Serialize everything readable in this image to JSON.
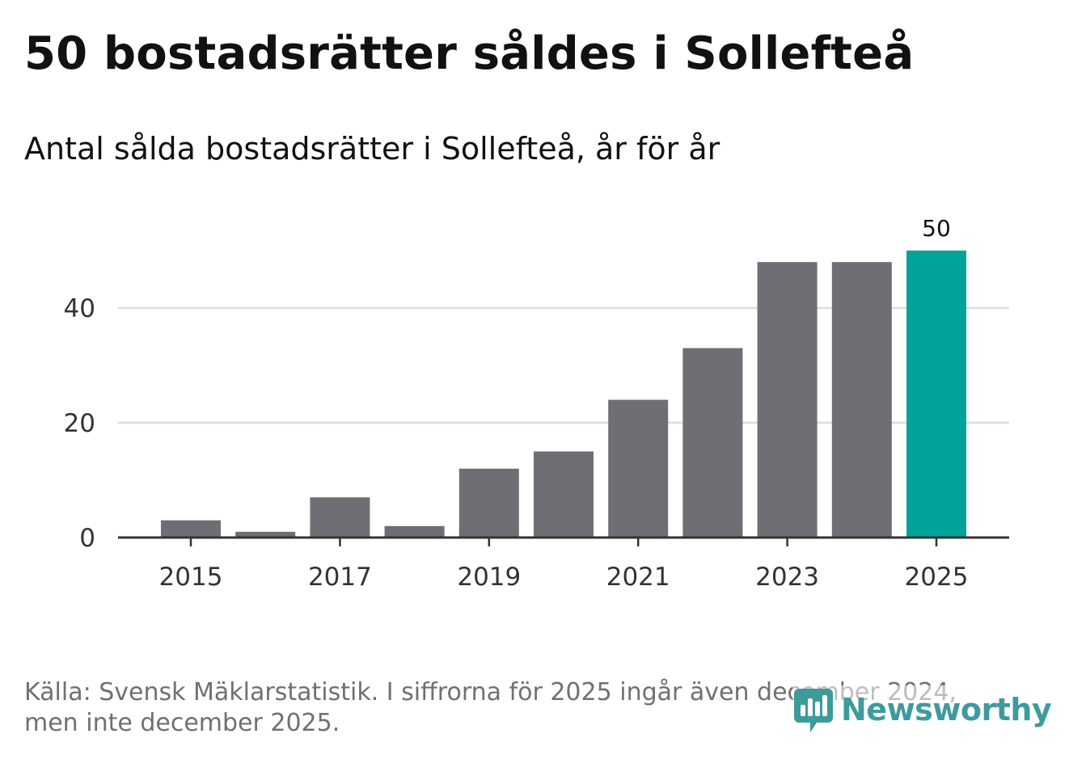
{
  "colors": {
    "bar": "#6e6e75",
    "highlight": "#00a39a",
    "grid": "#dddddd",
    "axis": "#333333",
    "brand": "#3e9b9b"
  },
  "source_text": "Källa: Svensk Mäklarstatistik. I siffrorna för 2025 ingår även december 2024, men inte december 2025.",
  "brand": {
    "name": "Newsworthy",
    "icon": "newsworthy-logo-icon"
  },
  "chart_data": {
    "type": "bar",
    "title": "50 bostadsrätter såldes i Sollefteå",
    "subtitle": "Antal sålda bostadsrätter i Sollefteå, år för år",
    "categories": [
      "2015",
      "2016",
      "2017",
      "2018",
      "2019",
      "2020",
      "2021",
      "2022",
      "2023",
      "2024",
      "2025"
    ],
    "values": [
      3,
      1,
      7,
      2,
      12,
      15,
      24,
      33,
      48,
      48,
      50
    ],
    "highlight_index": 10,
    "data_labels": [
      {
        "index": 10,
        "text": "50"
      }
    ],
    "x_tick_labels": [
      "2015",
      "2017",
      "2019",
      "2021",
      "2023",
      "2025"
    ],
    "y_ticks": [
      0,
      20,
      40
    ],
    "y_tick_labels": [
      "0",
      "20",
      "40"
    ],
    "ylim": [
      0,
      50
    ],
    "xlabel": "",
    "ylabel": "",
    "grid": true,
    "legend": "none"
  }
}
